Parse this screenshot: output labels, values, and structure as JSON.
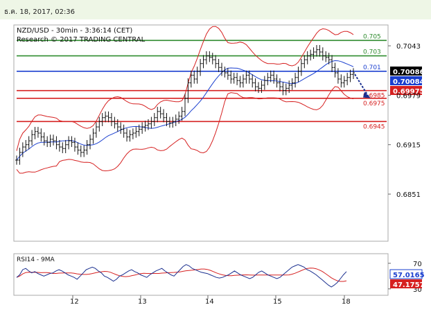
{
  "timestamp": "ธ.ค. 18, 2017, 02:36",
  "chart_data": {
    "type": "candlestick",
    "instrument_title": "NZD/USD - 30min - 3:36:14 (CET)",
    "research_credit": "Research © 2017 TRADING CENTRAL",
    "y_ticks": [
      "0.7043",
      "0.6979",
      "0.6915",
      "0.6851"
    ],
    "y_tick_values": [
      0.7043,
      0.6979,
      0.6915,
      0.6851
    ],
    "ylim": [
      0.679,
      0.707
    ],
    "x_ticks": [
      "12",
      "13",
      "14",
      "15",
      "18"
    ],
    "levels": [
      {
        "label": "0.705",
        "value": 0.705,
        "color": "#2e8b2e"
      },
      {
        "label": "0.703",
        "value": 0.703,
        "color": "#2e8b2e"
      },
      {
        "label": "0.701",
        "value": 0.701,
        "color": "#1a3fcf"
      },
      {
        "label": "0.6985",
        "value": 0.6985,
        "color": "#d62020"
      },
      {
        "label": "0.6975",
        "value": 0.6975,
        "color": "#d62020"
      },
      {
        "label": "0.6945",
        "value": 0.6945,
        "color": "#d62020"
      }
    ],
    "price_tags": [
      {
        "label": "0.70086",
        "value": 0.70086,
        "bg": "#000000"
      },
      {
        "label": "0.70084",
        "value": 0.70084,
        "bg": "#1a3fcf"
      },
      {
        "label": "0.69975",
        "value": 0.69975,
        "bg": "#d62020"
      }
    ],
    "price_path": [
      0.6895,
      0.6905,
      0.6912,
      0.6915,
      0.692,
      0.6928,
      0.6932,
      0.693,
      0.6925,
      0.692,
      0.6918,
      0.6922,
      0.692,
      0.6915,
      0.6912,
      0.691,
      0.6915,
      0.692,
      0.6918,
      0.6912,
      0.6908,
      0.6905,
      0.6908,
      0.6915,
      0.6922,
      0.693,
      0.6938,
      0.6945,
      0.695,
      0.6952,
      0.695,
      0.6945,
      0.6942,
      0.6938,
      0.6935,
      0.693,
      0.6925,
      0.6928,
      0.693,
      0.6932,
      0.6935,
      0.6938,
      0.694,
      0.6942,
      0.6945,
      0.695,
      0.6958,
      0.6955,
      0.695,
      0.6945,
      0.6943,
      0.6945,
      0.6948,
      0.6952,
      0.6958,
      0.6975,
      0.6995,
      0.7005,
      0.7,
      0.701,
      0.702,
      0.7025,
      0.703,
      0.7028,
      0.7025,
      0.702,
      0.7015,
      0.701,
      0.7008,
      0.7005,
      0.7,
      0.7002,
      0.6998,
      0.6995,
      0.7,
      0.7005,
      0.7,
      0.6995,
      0.699,
      0.6988,
      0.6992,
      0.6998,
      0.7002,
      0.7005,
      0.7,
      0.6995,
      0.699,
      0.6985,
      0.6988,
      0.6992,
      0.6995,
      0.7002,
      0.701,
      0.702,
      0.7025,
      0.703,
      0.7032,
      0.7035,
      0.7038,
      0.7035,
      0.703,
      0.7028,
      0.7025,
      0.7015,
      0.7008,
      0.7,
      0.6995,
      0.6998,
      0.7002,
      0.7006,
      0.7008
    ],
    "rsi_title": "RSI14 - 9MA",
    "rsi_ticks": [
      "70",
      "30"
    ],
    "rsi_tick_values": [
      70,
      30
    ],
    "rsi_ylim": [
      20,
      85
    ],
    "rsi_tags": [
      {
        "label": "57.0165",
        "value": 57.0165,
        "bg": "#ffffff",
        "fg": "#1a3fcf"
      },
      {
        "label": "47.1757",
        "value": 47.1757,
        "bg": "#d62020",
        "fg": "#ffffff"
      }
    ],
    "rsi_path": [
      48,
      52,
      60,
      62,
      58,
      55,
      57,
      54,
      52,
      50,
      52,
      54,
      55,
      58,
      60,
      58,
      55,
      52,
      50,
      48,
      45,
      50,
      55,
      60,
      62,
      64,
      62,
      58,
      55,
      50,
      48,
      45,
      42,
      45,
      50,
      52,
      55,
      58,
      60,
      57,
      55,
      52,
      50,
      48,
      52,
      55,
      58,
      60,
      62,
      58,
      55,
      52,
      50,
      55,
      60,
      65,
      68,
      66,
      62,
      60,
      58,
      56,
      55,
      54,
      52,
      50,
      48,
      47,
      48,
      50,
      52,
      55,
      58,
      55,
      52,
      50,
      48,
      46,
      48,
      52,
      56,
      58,
      55,
      52,
      50,
      48,
      46,
      48,
      52,
      56,
      60,
      64,
      66,
      68,
      66,
      64,
      60,
      58,
      55,
      52,
      48,
      44,
      40,
      36,
      33,
      36,
      40,
      46,
      52,
      57
    ]
  }
}
